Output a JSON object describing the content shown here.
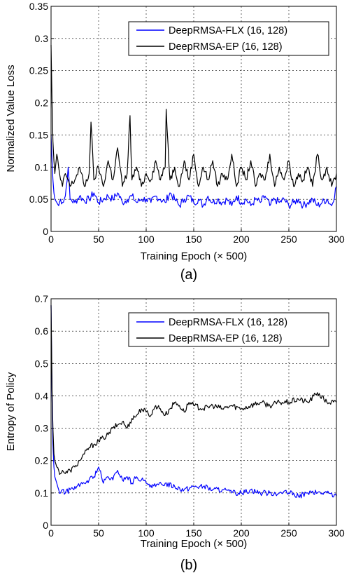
{
  "colors": {
    "flx": "#0000ff",
    "ep": "#000000",
    "grid": "#000000",
    "background": "#ffffff"
  },
  "chart_data": [
    {
      "type": "line",
      "caption": "(a)",
      "xlabel": "Training Epoch (× 500)",
      "ylabel": "Normalized Value Loss",
      "xlim": [
        0,
        300
      ],
      "ylim": [
        0,
        0.35
      ],
      "xticks": [
        0,
        50,
        100,
        150,
        200,
        250,
        300
      ],
      "yticks": [
        0,
        0.05,
        0.1,
        0.15,
        0.2,
        0.25,
        0.3,
        0.35
      ],
      "ytick_labels": [
        "0",
        "0.05",
        "0.1",
        "0.15",
        "0.2",
        "0.25",
        "0.3",
        "0.35"
      ],
      "grid": true,
      "legend": "top-right",
      "series": [
        {
          "name": "DeepRMSA-FLX (16, 128)",
          "color": "#0000ff",
          "x": [
            0,
            1,
            2,
            3,
            4,
            6,
            8,
            10,
            12,
            15,
            18,
            20,
            25,
            30,
            35,
            40,
            45,
            50,
            55,
            60,
            65,
            70,
            75,
            80,
            85,
            90,
            95,
            100,
            105,
            110,
            115,
            120,
            125,
            130,
            135,
            140,
            145,
            150,
            155,
            160,
            165,
            170,
            175,
            180,
            185,
            190,
            195,
            200,
            205,
            210,
            215,
            220,
            225,
            230,
            235,
            240,
            245,
            250,
            255,
            260,
            265,
            270,
            275,
            280,
            285,
            290,
            295,
            300
          ],
          "y": [
            0.15,
            0.11,
            0.08,
            0.06,
            0.05,
            0.045,
            0.04,
            0.05,
            0.045,
            0.055,
            0.1,
            0.05,
            0.045,
            0.055,
            0.048,
            0.05,
            0.06,
            0.045,
            0.05,
            0.055,
            0.05,
            0.06,
            0.045,
            0.05,
            0.055,
            0.045,
            0.05,
            0.05,
            0.045,
            0.055,
            0.05,
            0.045,
            0.06,
            0.05,
            0.04,
            0.05,
            0.055,
            0.045,
            0.05,
            0.04,
            0.055,
            0.045,
            0.05,
            0.045,
            0.05,
            0.04,
            0.055,
            0.045,
            0.05,
            0.04,
            0.05,
            0.045,
            0.055,
            0.04,
            0.05,
            0.045,
            0.05,
            0.04,
            0.045,
            0.05,
            0.04,
            0.045,
            0.05,
            0.04,
            0.045,
            0.05,
            0.04,
            0.07
          ]
        },
        {
          "name": "DeepRMSA-EP (16, 128)",
          "color": "#000000",
          "x": [
            0,
            1,
            2,
            3,
            4,
            6,
            8,
            10,
            12,
            15,
            18,
            20,
            25,
            30,
            35,
            40,
            42,
            45,
            50,
            55,
            60,
            65,
            70,
            75,
            80,
            83,
            85,
            90,
            95,
            100,
            105,
            110,
            115,
            120,
            121,
            125,
            130,
            135,
            140,
            145,
            150,
            155,
            160,
            165,
            170,
            175,
            180,
            185,
            190,
            195,
            200,
            205,
            210,
            215,
            220,
            225,
            230,
            235,
            240,
            245,
            250,
            255,
            260,
            265,
            270,
            275,
            280,
            285,
            290,
            295,
            300
          ],
          "y": [
            0.29,
            0.2,
            0.14,
            0.11,
            0.09,
            0.12,
            0.1,
            0.08,
            0.07,
            0.09,
            0.08,
            0.07,
            0.08,
            0.1,
            0.07,
            0.09,
            0.17,
            0.08,
            0.1,
            0.07,
            0.11,
            0.08,
            0.13,
            0.07,
            0.09,
            0.18,
            0.08,
            0.1,
            0.07,
            0.09,
            0.08,
            0.11,
            0.08,
            0.1,
            0.19,
            0.08,
            0.1,
            0.07,
            0.11,
            0.08,
            0.12,
            0.07,
            0.1,
            0.08,
            0.11,
            0.07,
            0.09,
            0.08,
            0.12,
            0.07,
            0.1,
            0.08,
            0.11,
            0.07,
            0.09,
            0.08,
            0.12,
            0.07,
            0.1,
            0.08,
            0.11,
            0.07,
            0.09,
            0.08,
            0.1,
            0.07,
            0.12,
            0.08,
            0.1,
            0.07,
            0.09
          ]
        }
      ]
    },
    {
      "type": "line",
      "caption": "(b)",
      "xlabel": "Training Epoch (× 500)",
      "ylabel": "Entropy of Policy",
      "xlim": [
        0,
        300
      ],
      "ylim": [
        0,
        0.7
      ],
      "xticks": [
        0,
        50,
        100,
        150,
        200,
        250,
        300
      ],
      "yticks": [
        0,
        0.1,
        0.2,
        0.3,
        0.4,
        0.5,
        0.6,
        0.7
      ],
      "ytick_labels": [
        "0",
        "0.1",
        "0.2",
        "0.3",
        "0.4",
        "0.5",
        "0.6",
        "0.7"
      ],
      "grid": true,
      "legend": "top-right",
      "series": [
        {
          "name": "DeepRMSA-FLX",
          "color": "#0000ff",
          "x": [
            0,
            1,
            2,
            3,
            4,
            6,
            8,
            10,
            12,
            15,
            20,
            25,
            30,
            35,
            40,
            45,
            50,
            55,
            60,
            65,
            70,
            75,
            80,
            85,
            90,
            95,
            100,
            110,
            120,
            130,
            140,
            150,
            160,
            170,
            180,
            190,
            200,
            210,
            220,
            230,
            240,
            250,
            260,
            270,
            280,
            290,
            300
          ],
          "y": [
            0.68,
            0.4,
            0.25,
            0.18,
            0.15,
            0.13,
            0.11,
            0.1,
            0.11,
            0.1,
            0.11,
            0.12,
            0.12,
            0.13,
            0.14,
            0.15,
            0.18,
            0.13,
            0.15,
            0.14,
            0.17,
            0.14,
            0.15,
            0.13,
            0.15,
            0.14,
            0.13,
            0.12,
            0.13,
            0.12,
            0.11,
            0.12,
            0.12,
            0.11,
            0.11,
            0.1,
            0.1,
            0.11,
            0.1,
            0.1,
            0.1,
            0.1,
            0.09,
            0.1,
            0.1,
            0.1,
            0.09
          ]
        },
        {
          "name": "DeepRMSA-EP",
          "color": "#000000",
          "x": [
            0,
            1,
            2,
            3,
            4,
            6,
            8,
            10,
            12,
            15,
            20,
            25,
            30,
            35,
            40,
            45,
            50,
            55,
            60,
            65,
            70,
            75,
            80,
            85,
            90,
            95,
            100,
            105,
            110,
            115,
            120,
            125,
            130,
            135,
            140,
            145,
            150,
            160,
            170,
            180,
            190,
            200,
            210,
            220,
            230,
            240,
            250,
            260,
            270,
            280,
            290,
            300
          ],
          "y": [
            0.68,
            0.42,
            0.3,
            0.22,
            0.2,
            0.18,
            0.17,
            0.16,
            0.17,
            0.16,
            0.17,
            0.18,
            0.2,
            0.22,
            0.24,
            0.25,
            0.26,
            0.27,
            0.28,
            0.3,
            0.31,
            0.32,
            0.3,
            0.33,
            0.34,
            0.36,
            0.35,
            0.34,
            0.37,
            0.36,
            0.34,
            0.36,
            0.38,
            0.37,
            0.35,
            0.38,
            0.37,
            0.36,
            0.37,
            0.36,
            0.37,
            0.36,
            0.37,
            0.38,
            0.37,
            0.38,
            0.38,
            0.39,
            0.38,
            0.41,
            0.38,
            0.38
          ]
        }
      ]
    }
  ]
}
